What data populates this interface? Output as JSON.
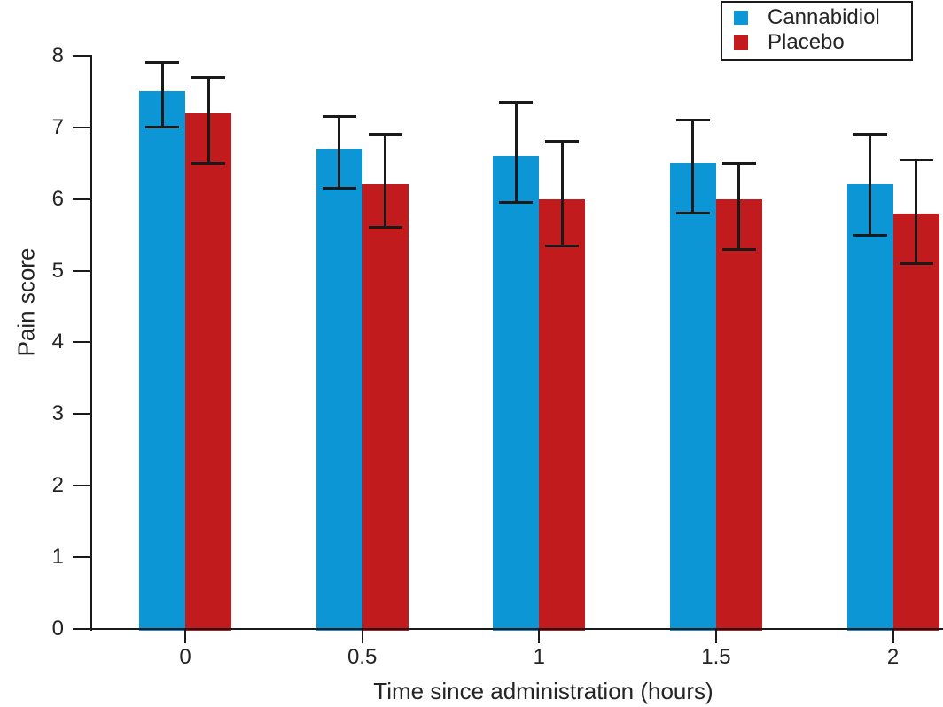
{
  "chart_data": {
    "type": "bar",
    "title": "",
    "xlabel": "Time since administration (hours)",
    "ylabel": "Pain score",
    "categories": [
      "0",
      "0.5",
      "1",
      "1.5",
      "2"
    ],
    "series": [
      {
        "name": "Cannabidiol",
        "color": "#0d96d6",
        "values": [
          7.5,
          6.7,
          6.6,
          6.5,
          6.2
        ],
        "err_upper": [
          7.9,
          7.15,
          7.35,
          7.1,
          6.9
        ],
        "err_lower": [
          7.0,
          6.15,
          5.95,
          5.8,
          5.5
        ]
      },
      {
        "name": "Placebo",
        "color": "#c11b1e",
        "values": [
          7.2,
          6.2,
          6.0,
          6.0,
          5.8
        ],
        "err_upper": [
          7.7,
          6.9,
          6.8,
          6.5,
          6.55
        ],
        "err_lower": [
          6.5,
          5.6,
          5.35,
          5.3,
          5.1
        ]
      }
    ],
    "ylim": [
      0,
      8
    ],
    "yticks": [
      0,
      1,
      2,
      3,
      4,
      5,
      6,
      7,
      8
    ],
    "legend_position": "top-right",
    "grid": false,
    "error_bars": true,
    "axis_color": "#1a1a1a",
    "text_color": "#242424"
  }
}
